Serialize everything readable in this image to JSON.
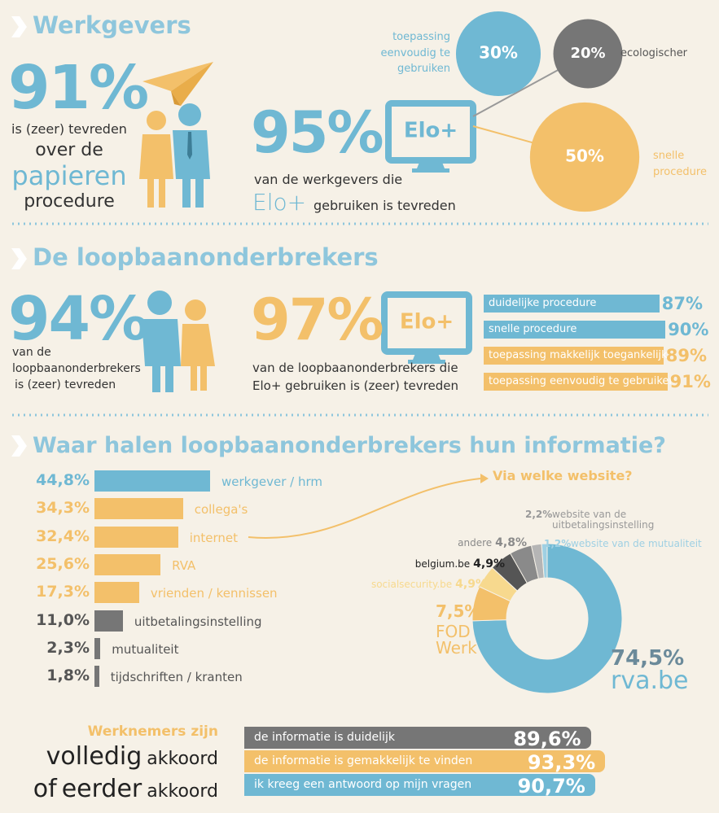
{
  "werkgevers": {
    "title": "Werkgevers",
    "stat": "91%",
    "stat_lines": [
      "is (zeer) tevreden",
      "over de",
      "papieren",
      "procedure"
    ],
    "elo_stat": "95%",
    "elo_monitor": "Elo+",
    "elo_line_1": "van de werkgevers die",
    "elo_brand": "Elo+",
    "elo_line_2": "gebruiken is tevreden",
    "bubbles": [
      {
        "value": 30,
        "label": "30%",
        "caption": "toepassing eenvoudig te gebruiken",
        "color": "#6fb8d3"
      },
      {
        "value": 20,
        "label": "20%",
        "caption": "ecologischer",
        "color": "#767676"
      },
      {
        "value": 50,
        "label": "50%",
        "caption": "snelle procedure",
        "color": "#f3c06a"
      }
    ]
  },
  "loopbaanonderbrekers": {
    "title": "De loopbaanonderbrekers",
    "stat": "94%",
    "stat_lines": [
      "van de",
      "loopbaanonderbrekers",
      "is (zeer) tevreden"
    ],
    "elo_stat": "97%",
    "elo_monitor": "Elo+",
    "elo_lines": [
      "van de loopbaanonderbrekers die",
      "Elo+ gebruiken is (zeer) tevreden"
    ],
    "bars": [
      {
        "name": "duidelijke procedure",
        "value": 87,
        "label": "87%",
        "color": "#6fb8d3"
      },
      {
        "name": "snelle procedure",
        "value": 90,
        "label": "90%",
        "color": "#6fb8d3"
      },
      {
        "name": "toepassing makkelijk toegankelijk",
        "value": 89,
        "label": "89%",
        "color": "#f3c06a"
      },
      {
        "name": "toepassing eenvoudig te gebruiken",
        "value": 91,
        "label": "91%",
        "color": "#f3c06a"
      }
    ]
  },
  "informatie": {
    "title": "Waar halen loopbaanonderbrekers hun informatie?",
    "bars": [
      {
        "name": "werkgever / hrm",
        "value": 44.8,
        "label": "44,8%",
        "color": "#6fb8d3"
      },
      {
        "name": "collega's",
        "value": 34.3,
        "label": "34,3%",
        "color": "#f3c06a"
      },
      {
        "name": "internet",
        "value": 32.4,
        "label": "32,4%",
        "color": "#f3c06a"
      },
      {
        "name": "RVA",
        "value": 25.6,
        "label": "25,6%",
        "color": "#f3c06a"
      },
      {
        "name": "vrienden / kennissen",
        "value": 17.3,
        "label": "17,3%",
        "color": "#f3c06a"
      },
      {
        "name": "uitbetalingsinstelling",
        "value": 11.0,
        "label": "11,0%",
        "color": "#767676"
      },
      {
        "name": "mutualiteit",
        "value": 2.3,
        "label": "2,3%",
        "color": "#767676"
      },
      {
        "name": "tijdschriften / kranten",
        "value": 1.8,
        "label": "1,8%",
        "color": "#767676"
      }
    ],
    "website": {
      "title": "Via welke website?",
      "slices": [
        {
          "name": "rva.be",
          "value": 74.5,
          "label": "74,5%",
          "color": "#6fb8d3"
        },
        {
          "name": "FOD Werk",
          "value": 7.5,
          "label": "7,5%",
          "color": "#f3c06a"
        },
        {
          "name": "socialsecurity.be",
          "value": 4.9,
          "label": "4,9%",
          "color": "#f7d98e"
        },
        {
          "name": "belgium.be",
          "value": 4.9,
          "label": "4,9%",
          "color": "#555555"
        },
        {
          "name": "andere",
          "value": 4.8,
          "label": "4,8%",
          "color": "#8a8a8a"
        },
        {
          "name": "website van de uitbetalingsinstelling",
          "value": 2.2,
          "label": "2,2%",
          "color": "#b5b5b5"
        },
        {
          "name": "website van de mutualiteit",
          "value": 1.2,
          "label": "1,2%",
          "color": "#9fd0e3"
        }
      ]
    }
  },
  "werknemers": {
    "title": "Werknemers zijn",
    "lines": [
      [
        {
          "text": "volledig",
          "emphasis": true
        },
        {
          "text": "akkoord",
          "emphasis": false
        }
      ],
      [
        {
          "text": "of",
          "emphasis": true
        },
        {
          "text": "eerder",
          "emphasis": true
        },
        {
          "text": "akkoord",
          "emphasis": false
        }
      ]
    ],
    "bars": [
      {
        "name": "de informatie is duidelijk",
        "value": 89.6,
        "label": "89,6%",
        "color": "#767676"
      },
      {
        "name": "de informatie is gemakkelijk te vinden",
        "value": 93.3,
        "label": "93,3%",
        "color": "#f3c06a"
      },
      {
        "name": "ik kreeg een antwoord op mijn vragen",
        "value": 90.7,
        "label": "90,7%",
        "color": "#6fb8d3"
      }
    ]
  }
}
